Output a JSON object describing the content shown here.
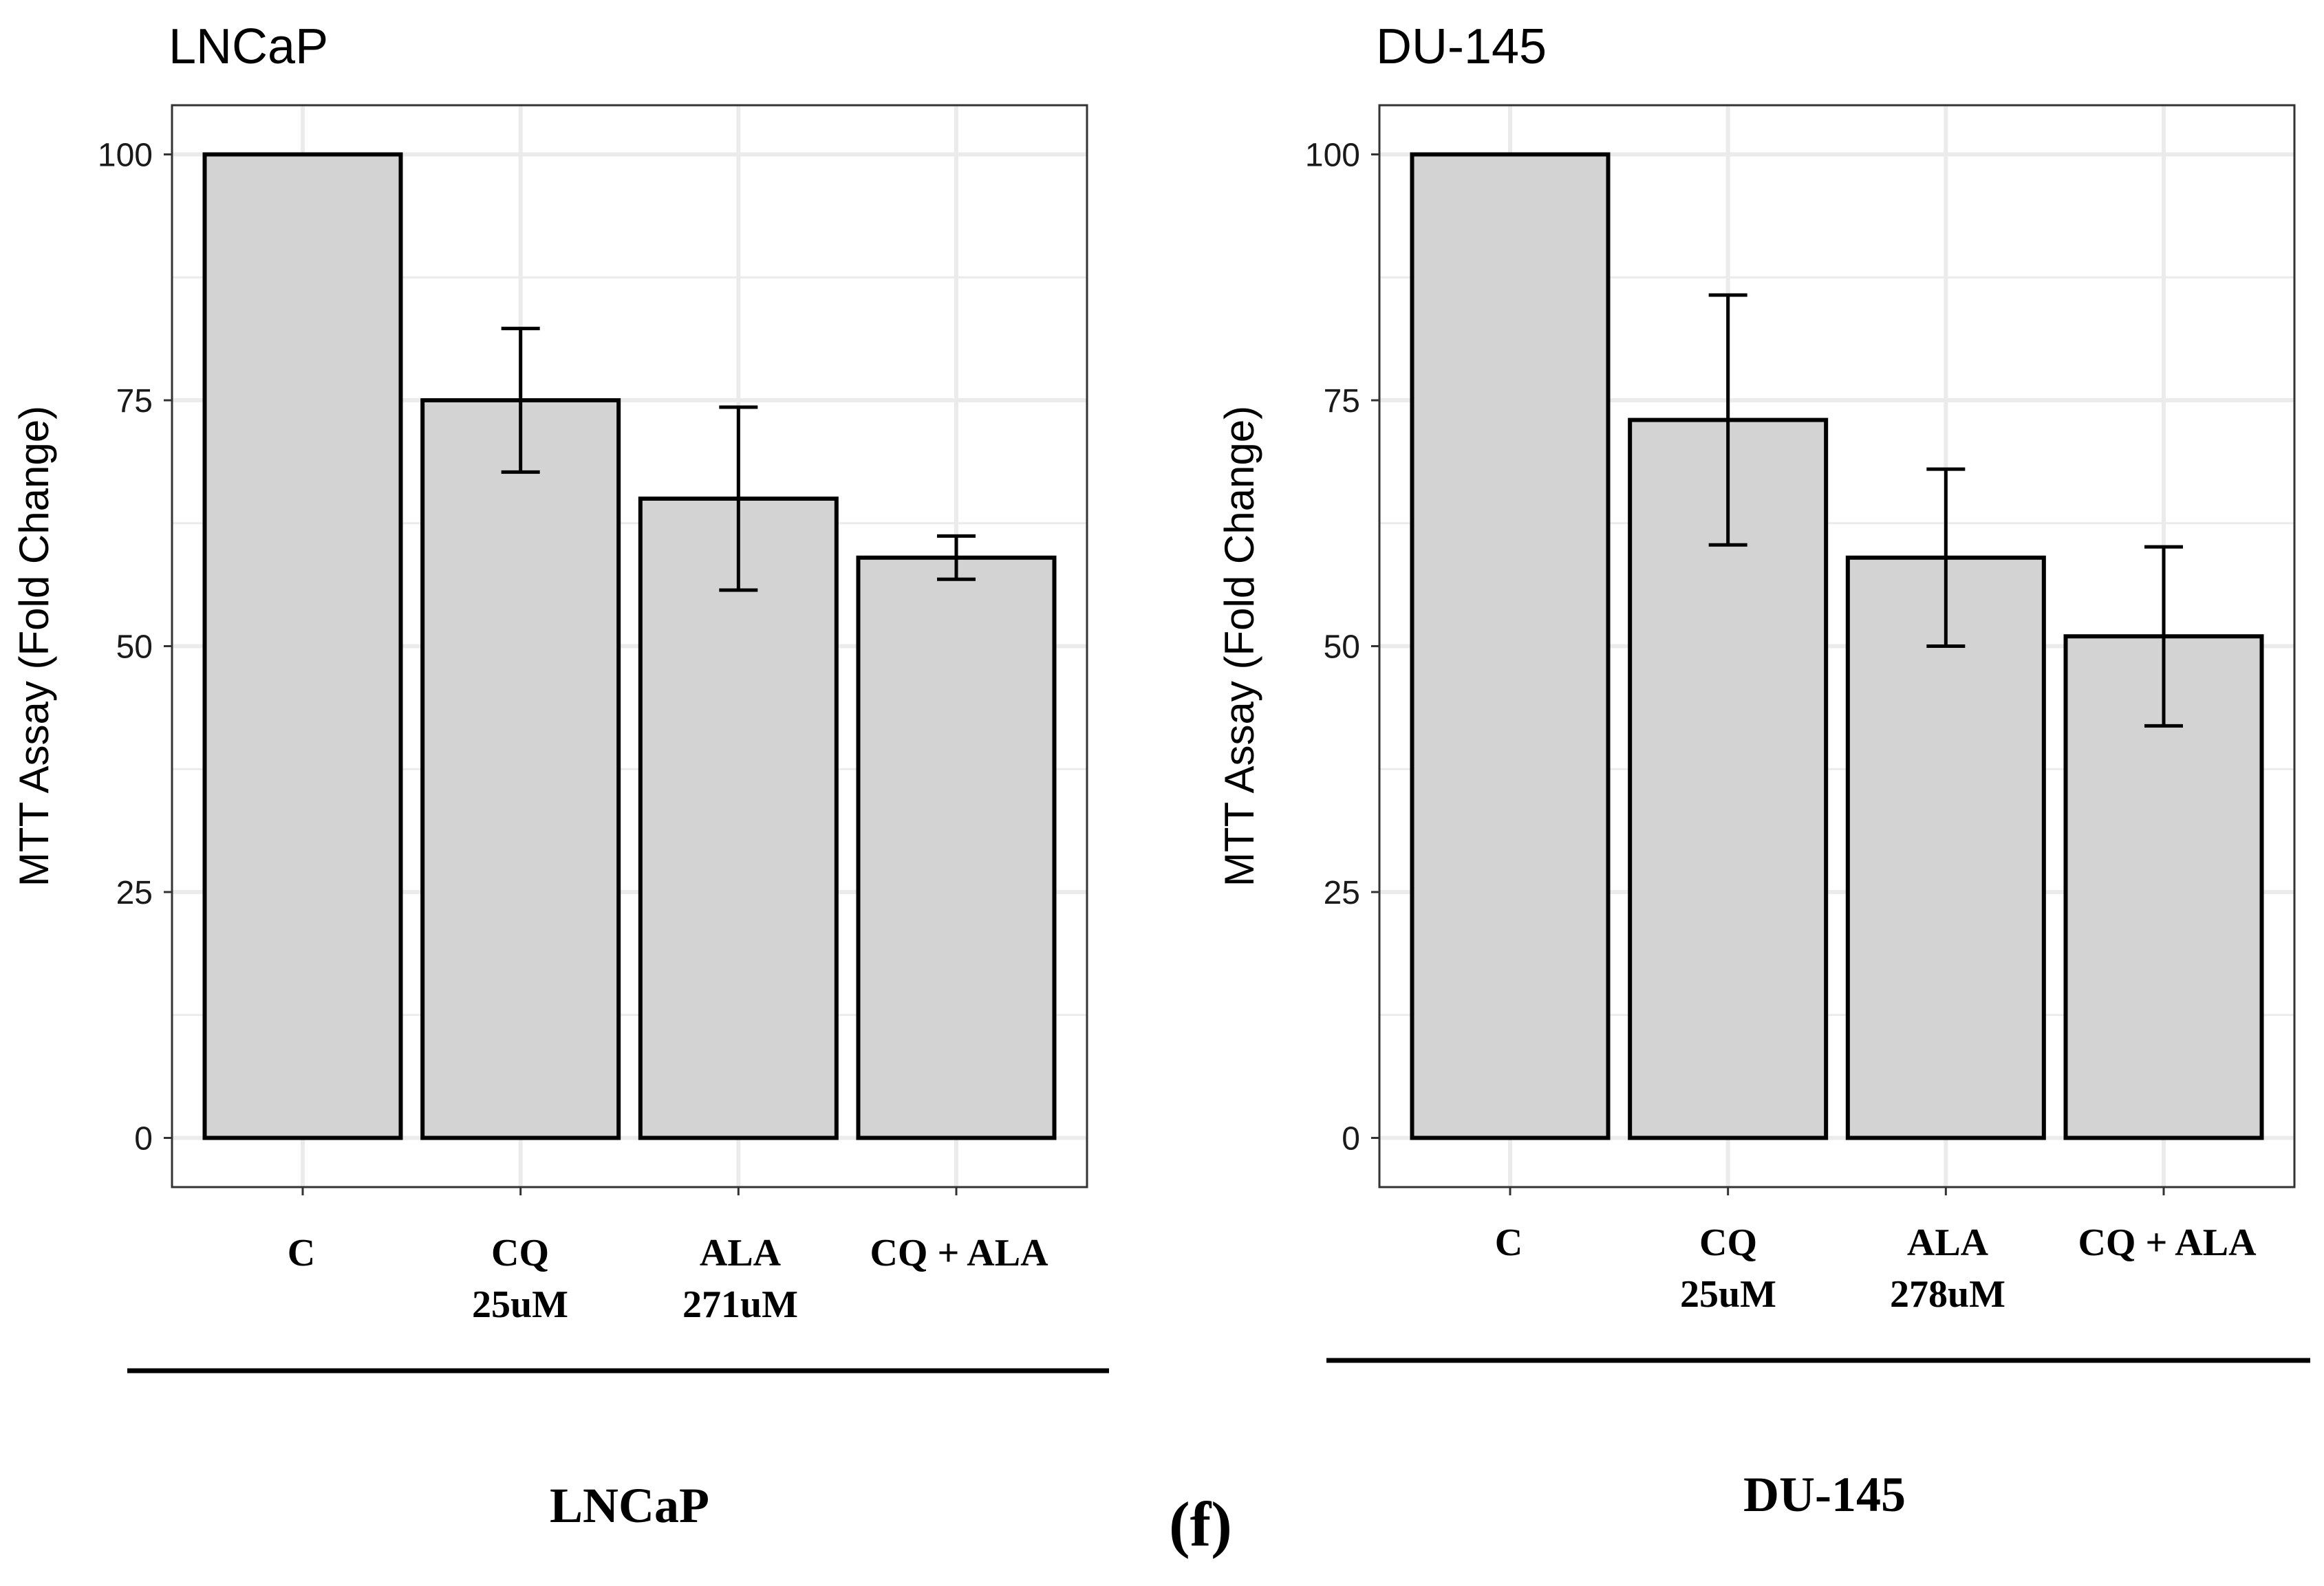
{
  "figure_label": "(f)",
  "colors": {
    "bar_fill": "#d3d3d3",
    "bar_stroke": "#000000",
    "grid": "#ebebeb",
    "panel_border": "#333333",
    "text": "#000000"
  },
  "chart_data": [
    {
      "type": "bar",
      "title": "LNCaP",
      "group_label": "LNCaP",
      "xlabel": "",
      "ylabel": "MTT Assay (Fold Change)",
      "ylim": [
        -5,
        105
      ],
      "yticks": [
        0,
        25,
        50,
        75,
        100
      ],
      "grid": true,
      "categories": [
        {
          "line1": "C",
          "line2": ""
        },
        {
          "line1": "CQ",
          "line2": "25uM"
        },
        {
          "line1": "ALA",
          "line2": "271uM"
        },
        {
          "line1": "CQ + ALA",
          "line2": ""
        }
      ],
      "values": [
        100,
        75,
        65,
        59
      ],
      "error_low": [
        100,
        67.7,
        55.7,
        56.8
      ],
      "error_high": [
        100,
        82.3,
        74.3,
        61.2
      ]
    },
    {
      "type": "bar",
      "title": "DU-145",
      "group_label": "DU-145",
      "xlabel": "",
      "ylabel": "MTT Assay (Fold Change)",
      "ylim": [
        -5,
        105
      ],
      "yticks": [
        0,
        25,
        50,
        75,
        100
      ],
      "grid": true,
      "categories": [
        {
          "line1": "C",
          "line2": ""
        },
        {
          "line1": "CQ",
          "line2": "25uM"
        },
        {
          "line1": "ALA",
          "line2": "278uM"
        },
        {
          "line1": "CQ + ALA",
          "line2": ""
        }
      ],
      "values": [
        100,
        73,
        59,
        51
      ],
      "error_low": [
        100,
        60.3,
        50,
        41.9
      ],
      "error_high": [
        100,
        85.7,
        68,
        60.1
      ]
    }
  ]
}
